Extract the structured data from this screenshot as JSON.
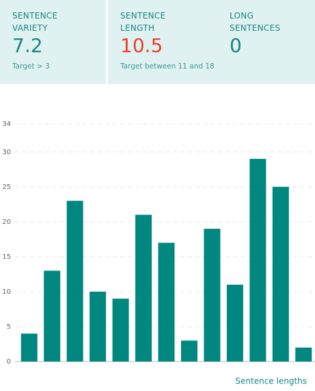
{
  "stats": [
    {
      "label_lines": [
        "SENTENCE",
        "VARIETY"
      ],
      "value": "7.2",
      "target": "Target > 3",
      "color": "#17877f"
    },
    {
      "label_lines": [
        "SENTENCE",
        "LENGTH"
      ],
      "value": "10.5",
      "target": "Target between 11 and 18",
      "color": "#e8412c"
    },
    {
      "label_lines": [
        "LONG",
        "SENTENCES"
      ],
      "value": "0",
      "color": "#17877f"
    }
  ],
  "chart_data": {
    "type": "bar",
    "x_label": "Sentence lengths",
    "values": [
      4,
      13,
      23,
      10,
      9,
      21,
      17,
      3,
      19,
      11,
      29,
      25,
      2
    ],
    "color": "#00877f",
    "ylim": [
      0,
      34
    ],
    "yticks": [
      0,
      5,
      10,
      15,
      20,
      25,
      30,
      34
    ],
    "grid": true
  }
}
